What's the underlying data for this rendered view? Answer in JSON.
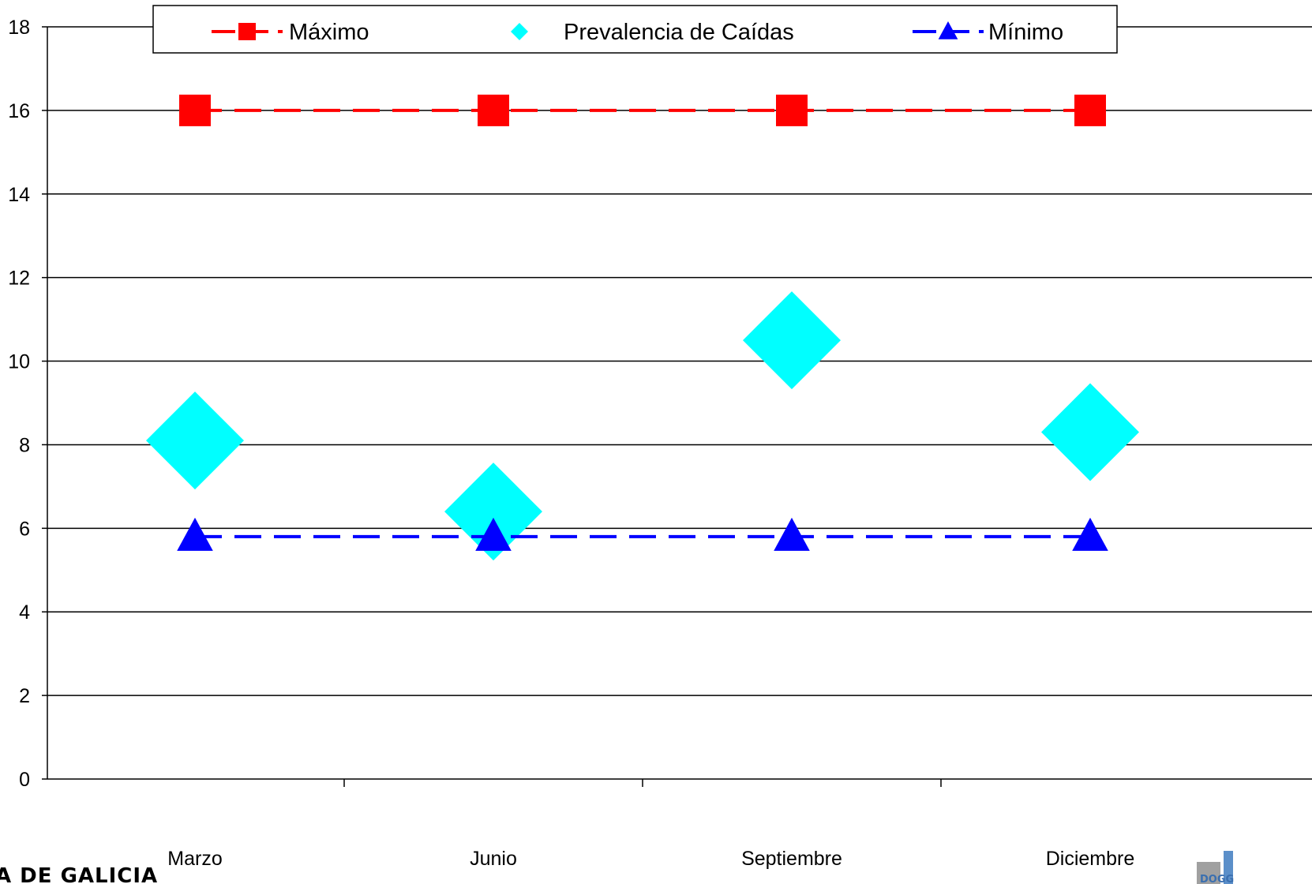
{
  "chart_data": {
    "type": "line",
    "categories": [
      "Marzo",
      "Junio",
      "Septiembre",
      "Diciembre"
    ],
    "ylim": [
      0,
      18
    ],
    "yticks": [
      0,
      2,
      4,
      6,
      8,
      10,
      12,
      14,
      16,
      18
    ],
    "grid": true,
    "legend_position": "top",
    "series": [
      {
        "name": "Máximo",
        "values": [
          16,
          16,
          16,
          16
        ],
        "color": "#ff0000",
        "marker": "square",
        "line": "dashed"
      },
      {
        "name": "Prevalencia de Caídas",
        "values": [
          8.1,
          6.4,
          10.5,
          8.3
        ],
        "color": "#00ffff",
        "marker": "diamond",
        "line": "none"
      },
      {
        "name": "Mínimo",
        "values": [
          5.8,
          5.8,
          5.8,
          5.8
        ],
        "color": "#0000ff",
        "marker": "triangle",
        "line": "dashed"
      }
    ]
  },
  "footer": {
    "left_logo_text": "A DE GALICIA",
    "right_logo_text": "DOGG"
  }
}
